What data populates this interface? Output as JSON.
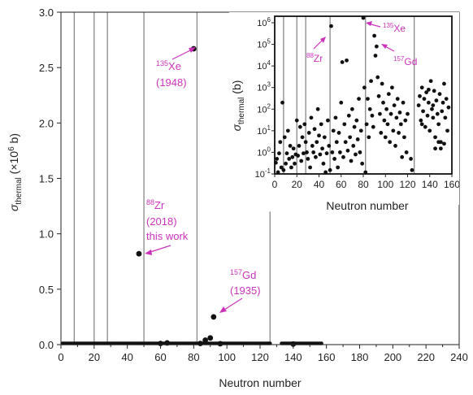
{
  "chart_data": [
    {
      "type": "scatter",
      "title": "",
      "xlabel": "Neutron number",
      "ylabel_parts": {
        "symbol": "σ",
        "sub": "thermal",
        "pre": " (×10",
        "sup": "6",
        "post": " b)"
      },
      "xlim": [
        0,
        240
      ],
      "ylim": [
        0,
        3.0
      ],
      "x_ticks": [
        "0",
        "20",
        "40",
        "60",
        "80",
        "100",
        "120",
        "140",
        "160",
        "180",
        "200",
        "220",
        "240"
      ],
      "y_ticks": [
        "0.0",
        "0.5",
        "1.0",
        "1.5",
        "2.0",
        "2.5",
        "3.0"
      ],
      "magic_lines": [
        8,
        20,
        28,
        50,
        82,
        126
      ],
      "points": [
        [
          47,
          0.82
        ],
        [
          80,
          2.67
        ],
        [
          92,
          0.25
        ],
        [
          90,
          0.06
        ],
        [
          87,
          0.04
        ],
        [
          60,
          0.01
        ],
        [
          64,
          0.015
        ],
        [
          84,
          0.01
        ],
        [
          96,
          0.008
        ],
        [
          140,
          0.005
        ]
      ],
      "baseline_ranges": [
        [
          1,
          126
        ],
        [
          133,
          157
        ]
      ],
      "annotations": [
        {
          "sup": "135",
          "name": "Xe",
          "year": "(1948)",
          "note": ""
        },
        {
          "sup": "88",
          "name": "Zr",
          "year": "(2018)",
          "note": "this work"
        },
        {
          "sup": "157",
          "name": "Gd",
          "year": "(1935)",
          "note": ""
        }
      ],
      "annotation_color": "#cc33bb"
    },
    {
      "type": "scatter",
      "title": "",
      "xlabel": "Neutron number",
      "ylabel_parts": {
        "symbol": "σ",
        "sub": "thermal",
        "post": " (b)"
      },
      "xlim": [
        0,
        160
      ],
      "ylim": [
        0.1,
        2000000
      ],
      "yscale": "log",
      "x_ticks": [
        "0",
        "20",
        "40",
        "60",
        "80",
        "100",
        "120",
        "140",
        "160"
      ],
      "y_ticks": [
        {
          "base": "10",
          "exp": "6"
        },
        {
          "base": "10",
          "exp": "5"
        },
        {
          "base": "10",
          "exp": "4"
        },
        {
          "base": "10",
          "exp": "3"
        },
        {
          "base": "10",
          "exp": "2"
        },
        {
          "base": "10",
          "exp": "1"
        },
        {
          "base": "10",
          "exp": "0"
        },
        {
          "base": "10",
          "exp": "-1"
        }
      ],
      "magic_lines": [
        8,
        20,
        28,
        50,
        82,
        126
      ],
      "points": [
        [
          1,
          0.33
        ],
        [
          2,
          0.5
        ],
        [
          3,
          0.12
        ],
        [
          4,
          0.9
        ],
        [
          5,
          3
        ],
        [
          6,
          0.2
        ],
        [
          7,
          200
        ],
        [
          8,
          0.15
        ],
        [
          9,
          5
        ],
        [
          10,
          0.3
        ],
        [
          11,
          0.9
        ],
        [
          12,
          10
        ],
        [
          13,
          0.5
        ],
        [
          14,
          2
        ],
        [
          15,
          0.2
        ],
        [
          16,
          0.6
        ],
        [
          17,
          1.5
        ],
        [
          18,
          0.3
        ],
        [
          19,
          0.8
        ],
        [
          20,
          30
        ],
        [
          21,
          0.7
        ],
        [
          22,
          2
        ],
        [
          23,
          15
        ],
        [
          24,
          0.4
        ],
        [
          25,
          5
        ],
        [
          26,
          0.9
        ],
        [
          27,
          20
        ],
        [
          28,
          3
        ],
        [
          29,
          1
        ],
        [
          30,
          0.5
        ],
        [
          31,
          8
        ],
        [
          32,
          0.2
        ],
        [
          33,
          40
        ],
        [
          34,
          2
        ],
        [
          35,
          1
        ],
        [
          36,
          12
        ],
        [
          37,
          0.6
        ],
        [
          38,
          3
        ],
        [
          39,
          100
        ],
        [
          40,
          6
        ],
        [
          41,
          0.8
        ],
        [
          42,
          20
        ],
        [
          43,
          1.5
        ],
        [
          44,
          0.3
        ],
        [
          45,
          5
        ],
        [
          46,
          0.12
        ],
        [
          47,
          0.9
        ],
        [
          48,
          30
        ],
        [
          49,
          2
        ],
        [
          50,
          0.15
        ],
        [
          51,
          700000
        ],
        [
          52,
          1
        ],
        [
          53,
          10
        ],
        [
          54,
          0.5
        ],
        [
          55,
          40
        ],
        [
          56,
          3
        ],
        [
          57,
          0.2
        ],
        [
          58,
          8
        ],
        [
          59,
          1
        ],
        [
          60,
          200
        ],
        [
          61,
          15000
        ],
        [
          62,
          0.6
        ],
        [
          63,
          20
        ],
        [
          64,
          3
        ],
        [
          65,
          18000
        ],
        [
          66,
          1.2
        ],
        [
          67,
          50
        ],
        [
          68,
          5
        ],
        [
          69,
          0.4
        ],
        [
          70,
          100
        ],
        [
          71,
          2
        ],
        [
          72,
          15
        ],
        [
          73,
          0.8
        ],
        [
          74,
          30
        ],
        [
          75,
          4
        ],
        [
          76,
          300
        ],
        [
          77,
          1
        ],
        [
          78,
          10
        ],
        [
          79,
          0.3
        ],
        [
          80,
          3000000
        ],
        [
          81,
          1000
        ],
        [
          82,
          0.1
        ],
        [
          83,
          20
        ],
        [
          84,
          300
        ],
        [
          85,
          5
        ],
        [
          86,
          100
        ],
        [
          87,
          2000
        ],
        [
          88,
          50
        ],
        [
          89,
          15
        ],
        [
          90,
          250000
        ],
        [
          91,
          30000
        ],
        [
          92,
          80000
        ],
        [
          93,
          3000
        ],
        [
          94,
          400
        ],
        [
          95,
          60
        ],
        [
          96,
          8
        ],
        [
          97,
          1500
        ],
        [
          98,
          200
        ],
        [
          99,
          30
        ],
        [
          100,
          5
        ],
        [
          101,
          100
        ],
        [
          102,
          20
        ],
        [
          103,
          500
        ],
        [
          104,
          3
        ],
        [
          105,
          60
        ],
        [
          106,
          1000
        ],
        [
          107,
          10
        ],
        [
          108,
          150
        ],
        [
          109,
          2
        ],
        [
          110,
          40
        ],
        [
          111,
          300
        ],
        [
          112,
          8
        ],
        [
          113,
          70
        ],
        [
          114,
          20
        ],
        [
          115,
          0.6
        ],
        [
          116,
          200
        ],
        [
          117,
          5
        ],
        [
          118,
          30
        ],
        [
          119,
          1
        ],
        [
          120,
          60
        ],
        [
          123,
          0.5
        ],
        [
          124,
          0.15
        ],
        [
          130,
          150
        ],
        [
          131,
          400
        ],
        [
          132,
          30
        ],
        [
          133,
          1000
        ],
        [
          134,
          80
        ],
        [
          135,
          300
        ],
        [
          136,
          15
        ],
        [
          137,
          600
        ],
        [
          138,
          50
        ],
        [
          139,
          200
        ],
        [
          140,
          10
        ],
        [
          141,
          2000
        ],
        [
          142,
          100
        ],
        [
          143,
          40
        ],
        [
          144,
          700
        ],
        [
          145,
          5
        ],
        [
          146,
          250
        ],
        [
          147,
          60
        ],
        [
          148,
          20
        ],
        [
          149,
          500
        ],
        [
          150,
          3
        ],
        [
          151,
          80
        ],
        [
          152,
          200
        ],
        [
          153,
          1500
        ],
        [
          154,
          40
        ],
        [
          155,
          300
        ],
        [
          156,
          10
        ],
        [
          157,
          120
        ],
        [
          133,
          20
        ],
        [
          145,
          1.5
        ],
        [
          150,
          1.5
        ],
        [
          153,
          2.5
        ],
        [
          139,
          800
        ],
        [
          143,
          150
        ],
        [
          148,
          3
        ]
      ],
      "annotations": [
        {
          "sup": "135",
          "name": "Xe"
        },
        {
          "sup": "88",
          "name": "Zr"
        },
        {
          "sup": "157",
          "name": "Gd"
        }
      ],
      "annotation_color": "#cc33bb"
    }
  ]
}
